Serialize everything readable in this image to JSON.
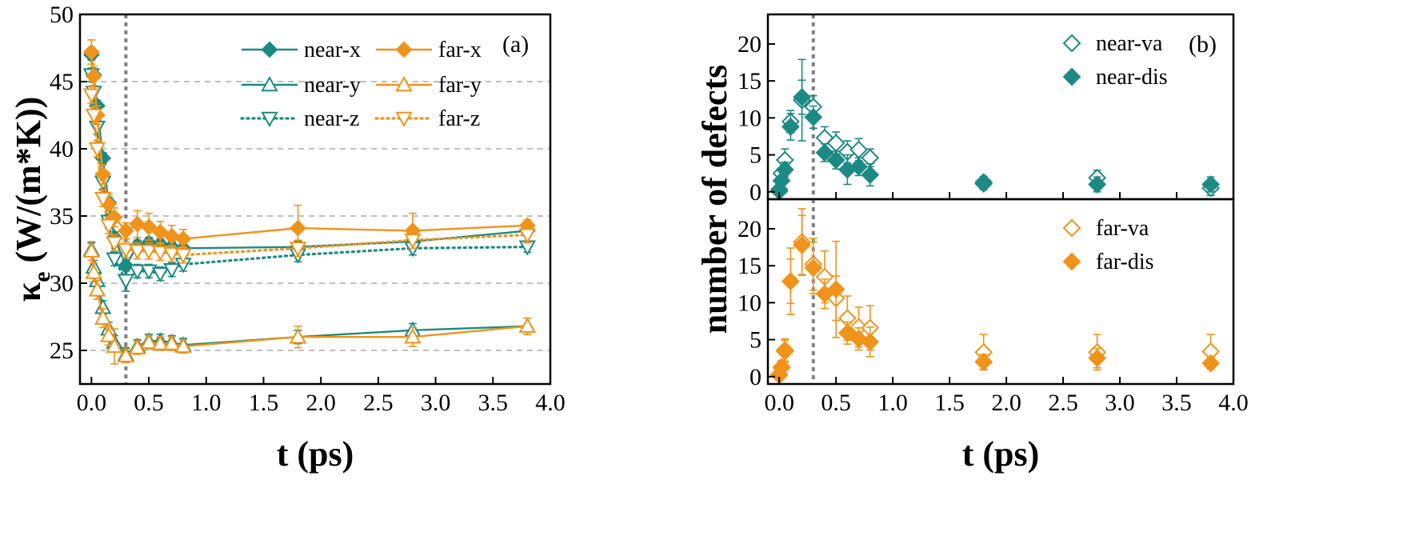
{
  "colors": {
    "teal": "#1b8a84",
    "orange": "#f0931a",
    "grid": "#999999",
    "marker_line": "#808080"
  },
  "chart_data": [
    {
      "type": "line",
      "panel_label": "(a)",
      "xlabel": "t (ps)",
      "ylabel_main": "κ",
      "ylabel_sub": "e",
      "ylabel_rest": " (W/(m*K))",
      "xlim": [
        -0.1,
        4.0
      ],
      "ylim": [
        22.5,
        50
      ],
      "xticks": [
        0,
        0.5,
        1.0,
        1.5,
        2.0,
        2.5,
        3.0,
        3.5,
        4.0
      ],
      "xtick_labels": [
        "0.0",
        "0.5",
        "1.0",
        "1.5",
        "2.0",
        "2.5",
        "3.0",
        "3.5",
        "4.0"
      ],
      "yticks": [
        25,
        30,
        35,
        40,
        45,
        50
      ],
      "ytick_labels": [
        "25",
        "30",
        "35",
        "40",
        "45",
        "50"
      ],
      "ygrid": [
        25,
        30,
        35,
        40,
        45
      ],
      "vline_x": 0.3,
      "legend_position": "top-right",
      "series": [
        {
          "name": "near-x",
          "color": "teal",
          "marker": "diamond",
          "filled": true,
          "line": "solid",
          "x": [
            0,
            0.02,
            0.05,
            0.1,
            0.15,
            0.2,
            0.3,
            0.4,
            0.5,
            0.6,
            0.7,
            0.8,
            1.8,
            2.8,
            3.8
          ],
          "y": [
            47.0,
            45.5,
            43.2,
            39.3,
            36.0,
            33.4,
            31.3,
            32.8,
            33.0,
            32.9,
            32.7,
            32.6,
            32.7,
            33.1,
            33.9
          ],
          "err": [
            0.4,
            0.4,
            0.4,
            0.4,
            0.4,
            0.4,
            0.4,
            0.4,
            0.4,
            0.4,
            0.4,
            0.4,
            0.4,
            0.4,
            0.4
          ]
        },
        {
          "name": "near-y",
          "color": "teal",
          "marker": "triangle-up",
          "filled": false,
          "line": "solid",
          "x": [
            0,
            0.02,
            0.05,
            0.1,
            0.15,
            0.2,
            0.3,
            0.4,
            0.5,
            0.6,
            0.7,
            0.8,
            1.8,
            2.8,
            3.8
          ],
          "y": [
            32.5,
            31.2,
            30.2,
            28.2,
            26.6,
            25.6,
            24.7,
            25.3,
            25.7,
            25.7,
            25.6,
            25.4,
            26.0,
            26.5,
            26.8
          ],
          "err": [
            0.5,
            0.5,
            0.5,
            0.5,
            0.5,
            0.5,
            0.5,
            0.5,
            0.5,
            0.5,
            0.5,
            0.5,
            0.5,
            0.5,
            0.6
          ]
        },
        {
          "name": "near-z",
          "color": "teal",
          "marker": "triangle-down",
          "filled": false,
          "line": "dotted",
          "x": [
            0,
            0.02,
            0.05,
            0.1,
            0.15,
            0.2,
            0.3,
            0.4,
            0.5,
            0.6,
            0.7,
            0.8,
            1.8,
            2.8,
            3.8
          ],
          "y": [
            45.5,
            44.2,
            41.6,
            37.5,
            34.6,
            31.8,
            30.2,
            30.9,
            30.9,
            30.7,
            31.0,
            31.4,
            32.1,
            32.6,
            32.7
          ],
          "err": [
            0.5,
            0.5,
            0.5,
            0.5,
            0.5,
            0.5,
            0.8,
            0.5,
            0.5,
            0.5,
            0.5,
            0.5,
            0.5,
            0.5,
            0.4
          ]
        },
        {
          "name": "far-x",
          "color": "orange",
          "marker": "diamond",
          "filled": true,
          "line": "solid",
          "x": [
            0,
            0.02,
            0.05,
            0.1,
            0.15,
            0.2,
            0.3,
            0.4,
            0.5,
            0.6,
            0.7,
            0.8,
            1.8,
            2.8,
            3.8
          ],
          "y": [
            47.2,
            45.4,
            42.5,
            38.1,
            35.9,
            34.9,
            33.9,
            34.4,
            34.2,
            33.8,
            33.5,
            33.3,
            34.1,
            33.9,
            34.3
          ],
          "err": [
            0.9,
            0.7,
            0.7,
            0.7,
            0.7,
            0.7,
            0.6,
            1.0,
            1.0,
            0.8,
            0.8,
            0.7,
            1.7,
            1.3,
            0.4
          ]
        },
        {
          "name": "far-y",
          "color": "orange",
          "marker": "triangle-up",
          "filled": false,
          "line": "solid",
          "x": [
            0,
            0.02,
            0.05,
            0.1,
            0.15,
            0.2,
            0.3,
            0.4,
            0.5,
            0.6,
            0.7,
            0.8,
            1.8,
            2.8,
            3.8
          ],
          "y": [
            32.4,
            30.8,
            29.5,
            27.4,
            26.1,
            25.3,
            24.6,
            25.2,
            25.6,
            25.5,
            25.5,
            25.3,
            26.0,
            26.0,
            26.8
          ],
          "err": [
            0.7,
            0.7,
            0.7,
            0.7,
            0.7,
            1.3,
            0.5,
            0.5,
            0.5,
            0.5,
            0.5,
            0.5,
            0.8,
            0.7,
            0.6
          ]
        },
        {
          "name": "far-z",
          "color": "orange",
          "marker": "triangle-down",
          "filled": false,
          "line": "dotted",
          "x": [
            0,
            0.02,
            0.05,
            0.1,
            0.15,
            0.2,
            0.3,
            0.4,
            0.5,
            0.6,
            0.7,
            0.8,
            1.8,
            2.8,
            3.8
          ],
          "y": [
            44.0,
            42.5,
            40.0,
            36.3,
            34.3,
            33.0,
            32.5,
            32.4,
            32.4,
            32.3,
            32.2,
            32.1,
            32.6,
            33.2,
            33.6
          ],
          "err": [
            0.6,
            0.6,
            0.6,
            0.6,
            0.6,
            0.6,
            0.6,
            0.6,
            0.6,
            0.6,
            0.6,
            0.6,
            0.6,
            0.6,
            0.6
          ]
        }
      ]
    },
    {
      "type": "scatter",
      "panel_label": "(b)",
      "xlabel": "t (ps)",
      "ylabel": "number of defects",
      "xlim": [
        -0.1,
        4.0
      ],
      "xticks": [
        0,
        0.5,
        1.0,
        1.5,
        2.0,
        2.5,
        3.0,
        3.5,
        4.0
      ],
      "xtick_labels": [
        "0.0",
        "0.5",
        "1.0",
        "1.5",
        "2.0",
        "2.5",
        "3.0",
        "3.5",
        "4.0"
      ],
      "vline_x": 0.3,
      "subplots": [
        {
          "position": "top",
          "ylim": [
            -1,
            24
          ],
          "yticks": [
            0,
            5,
            10,
            15,
            20
          ],
          "ytick_labels": [
            "0",
            "5",
            "10",
            "15",
            "20"
          ],
          "legend_position": "top-right",
          "series": [
            {
              "name": "near-va",
              "color": "teal",
              "marker": "diamond",
              "filled": false,
              "x": [
                0,
                0.02,
                0.05,
                0.1,
                0.2,
                0.3,
                0.4,
                0.5,
                0.6,
                0.7,
                0.8,
                1.8,
                2.8,
                3.8
              ],
              "y": [
                0.3,
                2.5,
                4.3,
                9.5,
                12.4,
                11.5,
                7.3,
                6.6,
                5.4,
                5.7,
                4.6,
                1.1,
                1.9,
                0.5
              ],
              "err": [
                0.3,
                0.7,
                1.5,
                1.5,
                5.5,
                1.5,
                1.5,
                1.5,
                1.5,
                1.5,
                1.2,
                0.8,
                1.0,
                1.0
              ]
            },
            {
              "name": "near-dis",
              "color": "teal",
              "marker": "diamond",
              "filled": true,
              "x": [
                0,
                0.02,
                0.05,
                0.1,
                0.2,
                0.3,
                0.4,
                0.5,
                0.6,
                0.7,
                0.8,
                1.8,
                2.8,
                3.8
              ],
              "y": [
                0.1,
                1.5,
                3.0,
                8.8,
                12.8,
                10.1,
                5.3,
                4.3,
                3.0,
                3.4,
                2.3,
                1.3,
                1.0,
                1.0
              ],
              "err": [
                0.2,
                0.5,
                1.0,
                1.8,
                2.3,
                1.5,
                1.2,
                1.2,
                2.0,
                1.2,
                1.5,
                0.8,
                1.0,
                1.0
              ]
            }
          ]
        },
        {
          "position": "bottom",
          "ylim": [
            -1,
            24
          ],
          "yticks": [
            0,
            5,
            10,
            15,
            20
          ],
          "ytick_labels": [
            "0",
            "5",
            "10",
            "15",
            "20"
          ],
          "legend_position": "top-right",
          "series": [
            {
              "name": "far-va",
              "color": "orange",
              "marker": "diamond",
              "filled": false,
              "x": [
                0,
                0.02,
                0.05,
                0.1,
                0.2,
                0.3,
                0.4,
                0.5,
                0.6,
                0.7,
                0.8,
                1.8,
                2.8,
                3.8
              ],
              "y": [
                0.3,
                1.2,
                3.4,
                12.9,
                18.2,
                15.2,
                13.5,
                10.6,
                7.9,
                6.7,
                6.6,
                3.3,
                3.3,
                3.4
              ],
              "err": [
                0.3,
                1.0,
                1.5,
                4.5,
                4.5,
                3.5,
                3.5,
                3.0,
                3.0,
                2.7,
                3.0,
                2.4,
                2.4,
                2.3
              ]
            },
            {
              "name": "far-dis",
              "color": "orange",
              "marker": "diamond",
              "filled": true,
              "x": [
                0,
                0.02,
                0.05,
                0.1,
                0.2,
                0.3,
                0.4,
                0.5,
                0.6,
                0.7,
                0.8,
                1.8,
                2.8,
                3.8
              ],
              "y": [
                0.2,
                1.3,
                3.6,
                12.9,
                17.8,
                14.7,
                11.2,
                11.8,
                5.9,
                5.1,
                4.7,
                2.0,
                2.5,
                1.8
              ],
              "err": [
                0.3,
                0.8,
                1.5,
                3.0,
                4.0,
                3.5,
                2.0,
                6.5,
                1.5,
                1.5,
                2.0,
                1.0,
                1.3,
                0.8
              ]
            }
          ]
        }
      ]
    }
  ]
}
